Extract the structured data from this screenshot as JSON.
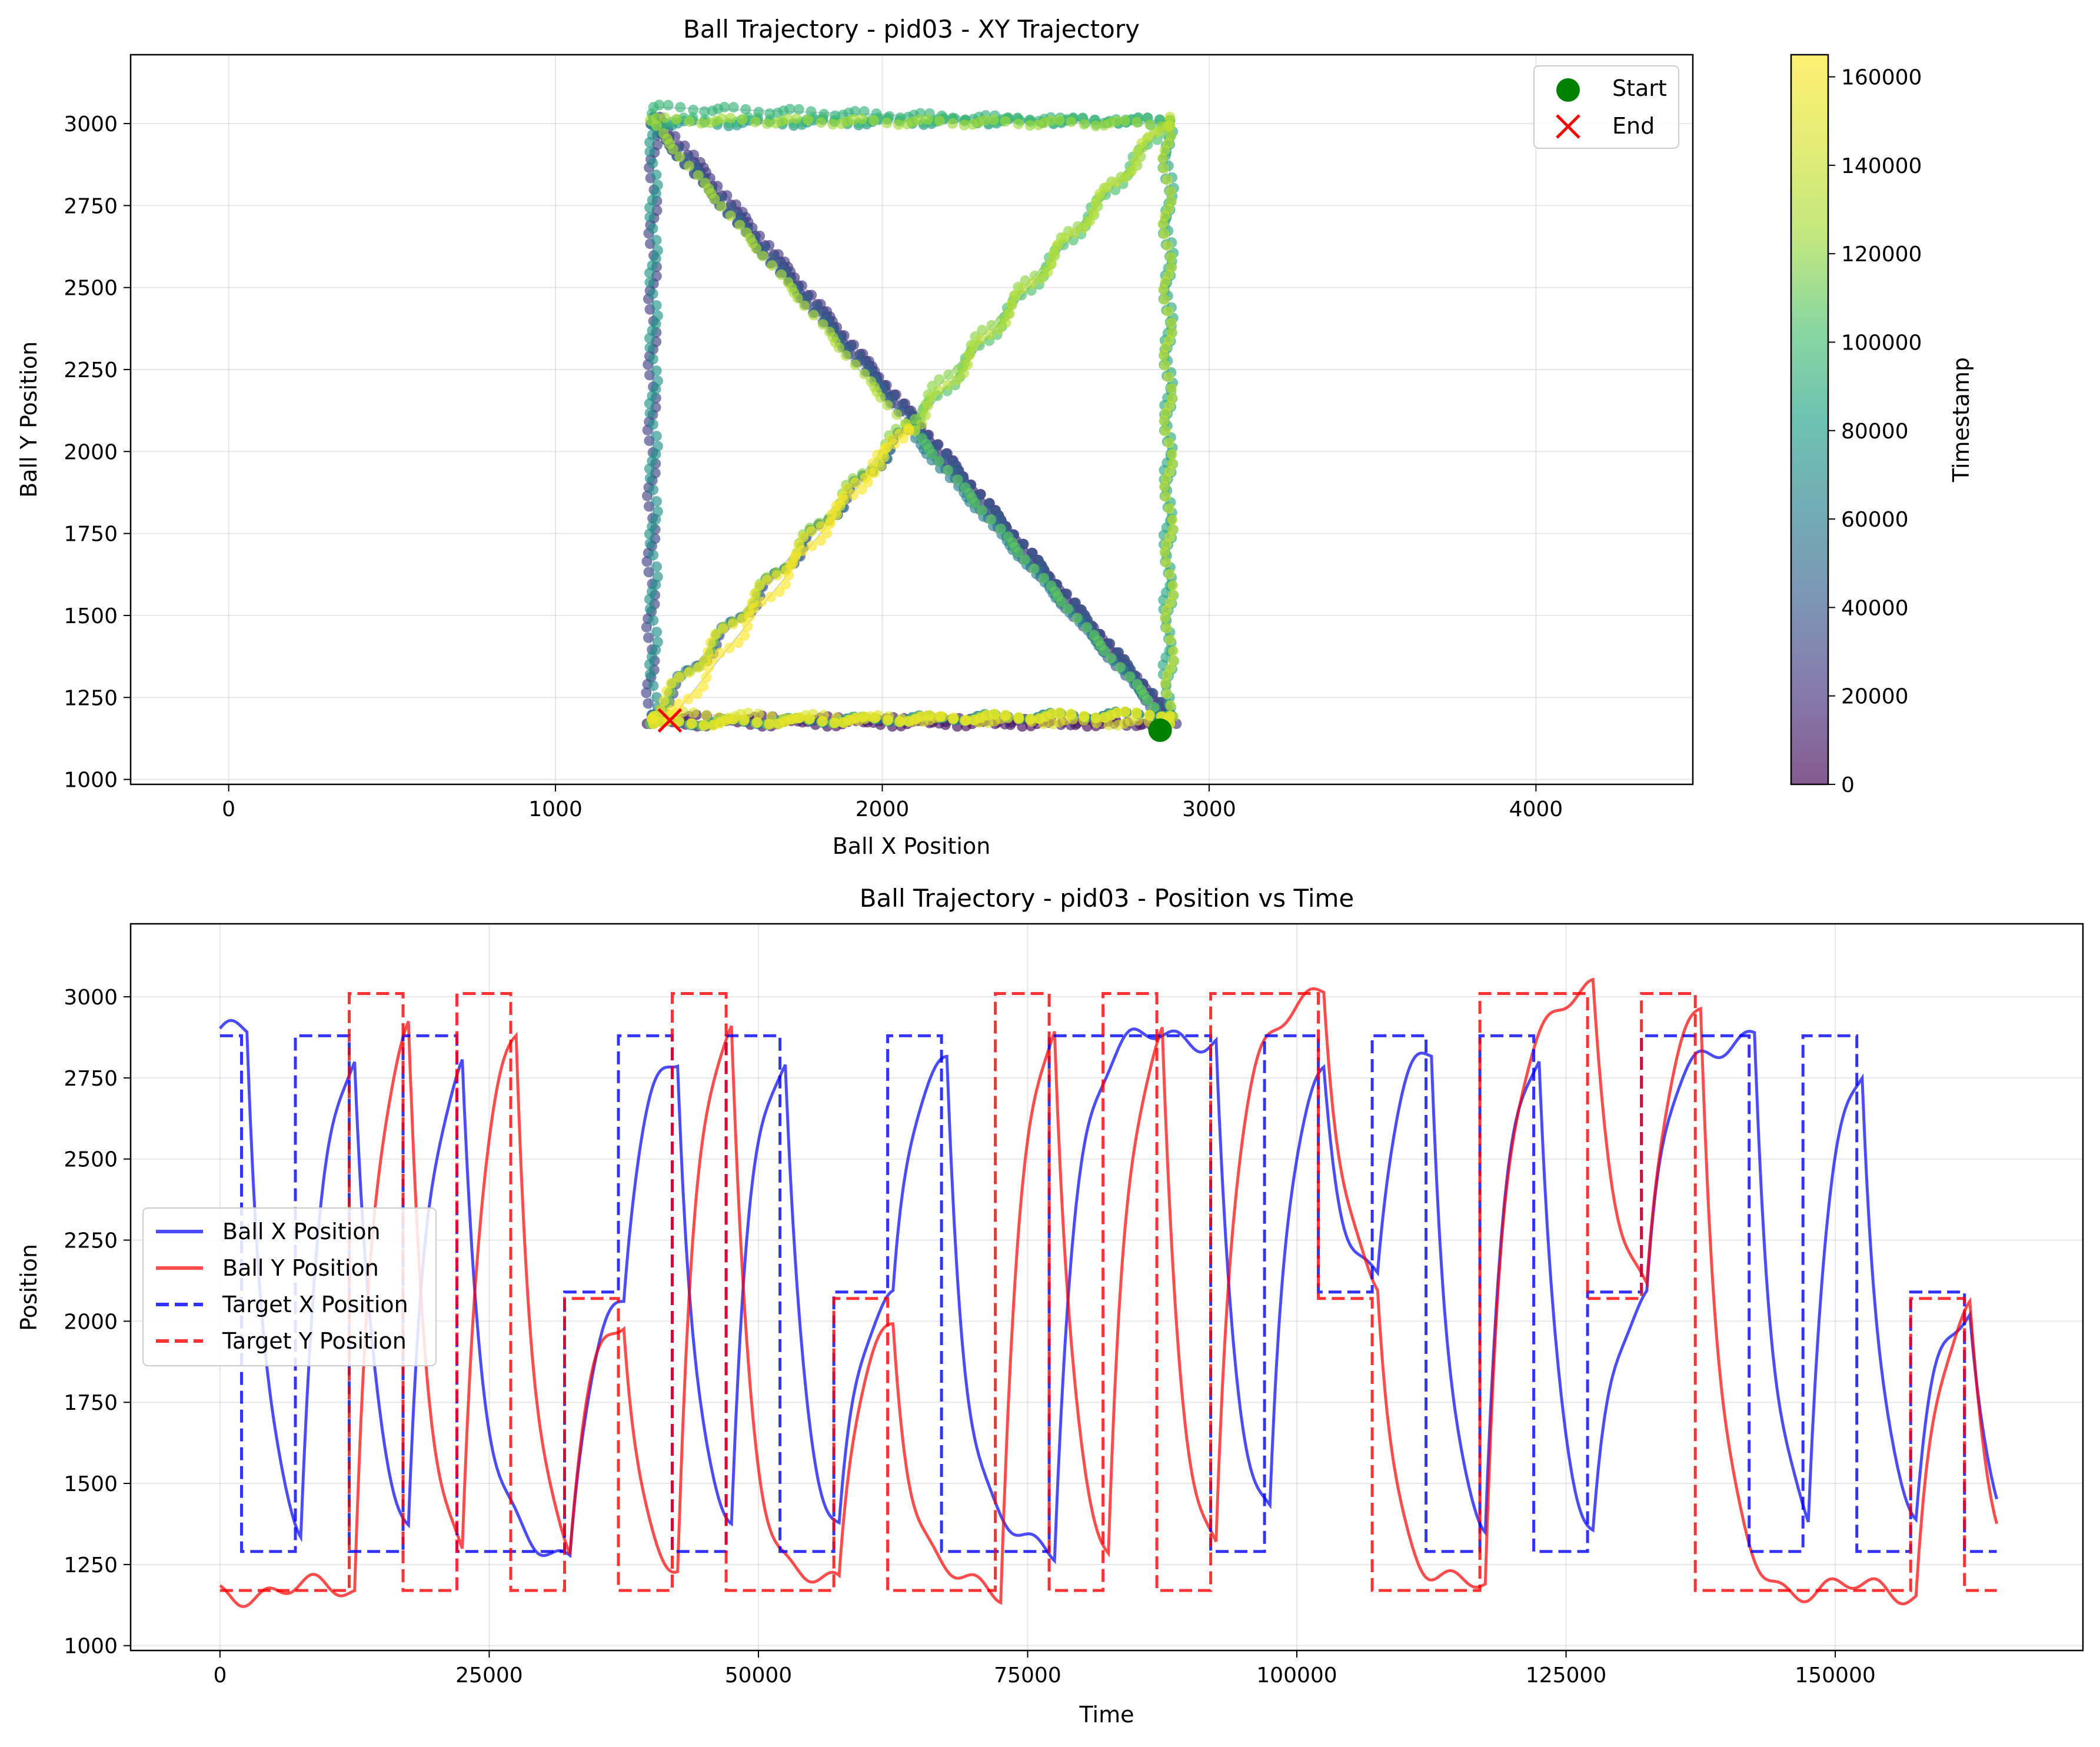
{
  "chart_data": [
    {
      "type": "scatter",
      "title": "Ball Trajectory - pid03 - XY Trajectory",
      "xlabel": "Ball X Position",
      "ylabel": "Ball Y Position",
      "xlim": [
        -300,
        4480
      ],
      "ylim": [
        985,
        3210
      ],
      "xticks": [
        0,
        1000,
        2000,
        3000,
        4000
      ],
      "xtick_labels": [
        "0",
        "1000",
        "2000",
        "3000",
        "4000"
      ],
      "yticks": [
        1000,
        1250,
        1500,
        1750,
        2000,
        2250,
        2500,
        2750,
        3000
      ],
      "ytick_labels": [
        "1000",
        "1250",
        "1500",
        "1750",
        "2000",
        "2250",
        "2500",
        "2750",
        "3000"
      ],
      "grid": true,
      "legend_position": "top-right",
      "legend": [
        {
          "label": "Start",
          "marker": "circle",
          "color": "#008000"
        },
        {
          "label": "End",
          "marker": "x",
          "color": "#ff0000"
        }
      ],
      "start_point": {
        "x": 2850,
        "y": 1150
      },
      "end_point": {
        "x": 1350,
        "y": 1180
      },
      "colorbar": {
        "label": "Timestamp",
        "range": [
          0,
          165000
        ],
        "ticks": [
          0,
          20000,
          40000,
          60000,
          80000,
          100000,
          120000,
          140000,
          160000
        ],
        "tick_labels": [
          "0",
          "20000",
          "40000",
          "60000",
          "80000",
          "100000",
          "120000",
          "140000",
          "160000"
        ],
        "colormap": "viridis"
      },
      "trajectory": [
        {
          "t": 0,
          "x": 2850,
          "y": 1150
        },
        {
          "t": 2000,
          "x": 2870,
          "y": 1170
        },
        {
          "t": 5000,
          "x": 1280,
          "y": 1170
        },
        {
          "t": 7000,
          "x": 1300,
          "y": 1190
        },
        {
          "t": 10000,
          "x": 2880,
          "y": 1170
        },
        {
          "t": 12000,
          "x": 2880,
          "y": 1200
        },
        {
          "t": 15000,
          "x": 1300,
          "y": 3020
        },
        {
          "t": 17000,
          "x": 1290,
          "y": 3000
        },
        {
          "t": 20000,
          "x": 2900,
          "y": 1170
        },
        {
          "t": 22000,
          "x": 2870,
          "y": 1200
        },
        {
          "t": 25000,
          "x": 1320,
          "y": 3020
        },
        {
          "t": 27000,
          "x": 1300,
          "y": 3000
        },
        {
          "t": 30000,
          "x": 1290,
          "y": 1170
        },
        {
          "t": 32000,
          "x": 1300,
          "y": 1200
        },
        {
          "t": 35000,
          "x": 2080,
          "y": 2070
        },
        {
          "t": 37000,
          "x": 2090,
          "y": 2070
        },
        {
          "t": 40000,
          "x": 2870,
          "y": 1170
        },
        {
          "t": 42000,
          "x": 2880,
          "y": 1200
        },
        {
          "t": 45000,
          "x": 1300,
          "y": 3010
        },
        {
          "t": 47000,
          "x": 1290,
          "y": 3000
        },
        {
          "t": 50000,
          "x": 2880,
          "y": 1170
        },
        {
          "t": 52000,
          "x": 2870,
          "y": 1200
        },
        {
          "t": 55000,
          "x": 1300,
          "y": 1170
        },
        {
          "t": 57000,
          "x": 1290,
          "y": 1200
        },
        {
          "t": 60000,
          "x": 2080,
          "y": 2070
        },
        {
          "t": 62000,
          "x": 2070,
          "y": 2070
        },
        {
          "t": 65000,
          "x": 2880,
          "y": 1170
        },
        {
          "t": 67000,
          "x": 2870,
          "y": 1200
        },
        {
          "t": 70000,
          "x": 1290,
          "y": 1170
        },
        {
          "t": 72000,
          "x": 1300,
          "y": 1200
        },
        {
          "t": 75000,
          "x": 1300,
          "y": 3020
        },
        {
          "t": 77000,
          "x": 1290,
          "y": 3000
        },
        {
          "t": 80000,
          "x": 2880,
          "y": 3010
        },
        {
          "t": 82000,
          "x": 2870,
          "y": 3000
        },
        {
          "t": 85000,
          "x": 2880,
          "y": 1170
        },
        {
          "t": 87000,
          "x": 2870,
          "y": 1200
        },
        {
          "t": 90000,
          "x": 2880,
          "y": 3010
        },
        {
          "t": 92000,
          "x": 2870,
          "y": 3000
        },
        {
          "t": 95000,
          "x": 1300,
          "y": 3050
        },
        {
          "t": 97000,
          "x": 1290,
          "y": 3010
        },
        {
          "t": 100000,
          "x": 2880,
          "y": 3010
        },
        {
          "t": 102000,
          "x": 2870,
          "y": 3000
        },
        {
          "t": 105000,
          "x": 2100,
          "y": 2080
        },
        {
          "t": 107000,
          "x": 2090,
          "y": 2070
        },
        {
          "t": 110000,
          "x": 2880,
          "y": 1170
        },
        {
          "t": 112000,
          "x": 2870,
          "y": 1200
        },
        {
          "t": 115000,
          "x": 1290,
          "y": 1170
        },
        {
          "t": 117000,
          "x": 1300,
          "y": 1200
        },
        {
          "t": 120000,
          "x": 2880,
          "y": 3010
        },
        {
          "t": 122000,
          "x": 2870,
          "y": 3000
        },
        {
          "t": 125000,
          "x": 1290,
          "y": 3010
        },
        {
          "t": 127000,
          "x": 1300,
          "y": 3000
        },
        {
          "t": 130000,
          "x": 2080,
          "y": 2070
        },
        {
          "t": 132000,
          "x": 2090,
          "y": 2070
        },
        {
          "t": 135000,
          "x": 2880,
          "y": 3020
        },
        {
          "t": 137000,
          "x": 2870,
          "y": 3000
        },
        {
          "t": 140000,
          "x": 2880,
          "y": 1170
        },
        {
          "t": 142000,
          "x": 2870,
          "y": 1200
        },
        {
          "t": 145000,
          "x": 1300,
          "y": 1170
        },
        {
          "t": 147000,
          "x": 1290,
          "y": 1200
        },
        {
          "t": 150000,
          "x": 2880,
          "y": 1170
        },
        {
          "t": 152000,
          "x": 2870,
          "y": 1200
        },
        {
          "t": 155000,
          "x": 1300,
          "y": 1170
        },
        {
          "t": 157000,
          "x": 1290,
          "y": 1200
        },
        {
          "t": 160000,
          "x": 2080,
          "y": 2070
        },
        {
          "t": 162000,
          "x": 2070,
          "y": 2070
        },
        {
          "t": 165000,
          "x": 1350,
          "y": 1180
        }
      ]
    },
    {
      "type": "line",
      "title": "Ball Trajectory - pid03 - Position vs Time",
      "xlabel": "Time",
      "ylabel": "Position",
      "xlim": [
        -8300,
        173000
      ],
      "ylim": [
        985,
        3225
      ],
      "xticks": [
        0,
        25000,
        50000,
        75000,
        100000,
        125000,
        150000
      ],
      "xtick_labels": [
        "0",
        "25000",
        "50000",
        "75000",
        "100000",
        "125000",
        "150000"
      ],
      "yticks": [
        1000,
        1250,
        1500,
        1750,
        2000,
        2250,
        2500,
        2750,
        3000
      ],
      "ytick_labels": [
        "1000",
        "1250",
        "1500",
        "1750",
        "2000",
        "2250",
        "2500",
        "2750",
        "3000"
      ],
      "grid": true,
      "legend_position": "center-left",
      "series": [
        {
          "name": "Ball X Position",
          "color": "#0000ff",
          "style": "solid"
        },
        {
          "name": "Ball Y Position",
          "color": "#ff0000",
          "style": "solid"
        },
        {
          "name": "Target X Position",
          "color": "#0000ff",
          "style": "dashed"
        },
        {
          "name": "Target Y Position",
          "color": "#ff0000",
          "style": "dashed"
        }
      ],
      "target_x": [
        {
          "t_start": 0,
          "t_end": 2000,
          "value": 2880
        },
        {
          "t_start": 2000,
          "t_end": 7000,
          "value": 1290
        },
        {
          "t_start": 7000,
          "t_end": 12000,
          "value": 2880
        },
        {
          "t_start": 12000,
          "t_end": 17000,
          "value": 1290
        },
        {
          "t_start": 17000,
          "t_end": 22000,
          "value": 2880
        },
        {
          "t_start": 22000,
          "t_end": 32000,
          "value": 1290
        },
        {
          "t_start": 32000,
          "t_end": 37000,
          "value": 2090
        },
        {
          "t_start": 37000,
          "t_end": 42000,
          "value": 2880
        },
        {
          "t_start": 42000,
          "t_end": 47000,
          "value": 1290
        },
        {
          "t_start": 47000,
          "t_end": 52000,
          "value": 2880
        },
        {
          "t_start": 52000,
          "t_end": 57000,
          "value": 1290
        },
        {
          "t_start": 57000,
          "t_end": 62000,
          "value": 2090
        },
        {
          "t_start": 62000,
          "t_end": 67000,
          "value": 2880
        },
        {
          "t_start": 67000,
          "t_end": 77000,
          "value": 1290
        },
        {
          "t_start": 77000,
          "t_end": 92000,
          "value": 2880
        },
        {
          "t_start": 92000,
          "t_end": 97000,
          "value": 1290
        },
        {
          "t_start": 97000,
          "t_end": 102000,
          "value": 2880
        },
        {
          "t_start": 102000,
          "t_end": 107000,
          "value": 2090
        },
        {
          "t_start": 107000,
          "t_end": 112000,
          "value": 2880
        },
        {
          "t_start": 112000,
          "t_end": 117000,
          "value": 1290
        },
        {
          "t_start": 117000,
          "t_end": 122000,
          "value": 2880
        },
        {
          "t_start": 122000,
          "t_end": 127000,
          "value": 1290
        },
        {
          "t_start": 127000,
          "t_end": 132000,
          "value": 2090
        },
        {
          "t_start": 132000,
          "t_end": 142000,
          "value": 2880
        },
        {
          "t_start": 142000,
          "t_end": 147000,
          "value": 1290
        },
        {
          "t_start": 147000,
          "t_end": 152000,
          "value": 2880
        },
        {
          "t_start": 152000,
          "t_end": 157000,
          "value": 1290
        },
        {
          "t_start": 157000,
          "t_end": 162000,
          "value": 2090
        },
        {
          "t_start": 162000,
          "t_end": 165000,
          "value": 1290
        }
      ],
      "target_y": [
        {
          "t_start": 0,
          "t_end": 12000,
          "value": 1170
        },
        {
          "t_start": 12000,
          "t_end": 17000,
          "value": 3010
        },
        {
          "t_start": 17000,
          "t_end": 22000,
          "value": 1170
        },
        {
          "t_start": 22000,
          "t_end": 27000,
          "value": 3010
        },
        {
          "t_start": 27000,
          "t_end": 32000,
          "value": 1170
        },
        {
          "t_start": 32000,
          "t_end": 37000,
          "value": 2070
        },
        {
          "t_start": 37000,
          "t_end": 42000,
          "value": 1170
        },
        {
          "t_start": 42000,
          "t_end": 47000,
          "value": 3010
        },
        {
          "t_start": 47000,
          "t_end": 57000,
          "value": 1170
        },
        {
          "t_start": 57000,
          "t_end": 62000,
          "value": 2070
        },
        {
          "t_start": 62000,
          "t_end": 72000,
          "value": 1170
        },
        {
          "t_start": 72000,
          "t_end": 77000,
          "value": 3010
        },
        {
          "t_start": 77000,
          "t_end": 82000,
          "value": 1170
        },
        {
          "t_start": 82000,
          "t_end": 87000,
          "value": 3010
        },
        {
          "t_start": 87000,
          "t_end": 92000,
          "value": 1170
        },
        {
          "t_start": 92000,
          "t_end": 102000,
          "value": 3010
        },
        {
          "t_start": 102000,
          "t_end": 107000,
          "value": 2070
        },
        {
          "t_start": 107000,
          "t_end": 117000,
          "value": 1170
        },
        {
          "t_start": 117000,
          "t_end": 127000,
          "value": 3010
        },
        {
          "t_start": 127000,
          "t_end": 132000,
          "value": 2070
        },
        {
          "t_start": 132000,
          "t_end": 137000,
          "value": 3010
        },
        {
          "t_start": 137000,
          "t_end": 157000,
          "value": 1170
        },
        {
          "t_start": 157000,
          "t_end": 162000,
          "value": 2070
        },
        {
          "t_start": 162000,
          "t_end": 165000,
          "value": 1170
        }
      ]
    }
  ]
}
